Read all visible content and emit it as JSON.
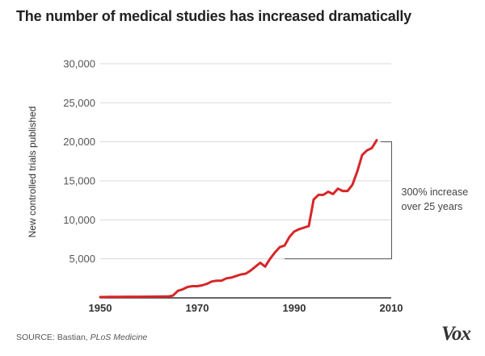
{
  "chart_data": {
    "type": "line",
    "title": "The number of medical studies has increased dramatically",
    "ylabel": "New controlled trials published",
    "xlabel": "",
    "xlim": [
      1950,
      2010
    ],
    "ylim": [
      0,
      30000
    ],
    "x_ticks": [
      "1950",
      "1970",
      "1990",
      "2010"
    ],
    "x_tick_values": [
      1950,
      1970,
      1990,
      2010
    ],
    "y_ticks": [
      "5,000",
      "10,000",
      "15,000",
      "20,000",
      "25,000",
      "30,000"
    ],
    "y_tick_values": [
      5000,
      10000,
      15000,
      20000,
      25000,
      30000
    ],
    "grid": "horizontal",
    "series": [
      {
        "color": "#d62728",
        "x": [
          1950,
          1952,
          1954,
          1956,
          1958,
          1960,
          1962,
          1964,
          1965,
          1966,
          1967,
          1968,
          1969,
          1970,
          1971,
          1972,
          1973,
          1974,
          1975,
          1976,
          1977,
          1978,
          1979,
          1980,
          1981,
          1982,
          1983,
          1984,
          1985,
          1986,
          1987,
          1988,
          1989,
          1990,
          1991,
          1992,
          1993,
          1994,
          1995,
          1996,
          1997,
          1998,
          1999,
          2000,
          2001,
          2002,
          2003,
          2004,
          2005,
          2006,
          2007
        ],
        "y": [
          100,
          120,
          130,
          140,
          150,
          160,
          170,
          180,
          300,
          900,
          1100,
          1400,
          1500,
          1500,
          1600,
          1800,
          2100,
          2200,
          2200,
          2500,
          2600,
          2800,
          3000,
          3100,
          3500,
          4000,
          4500,
          4000,
          5000,
          5800,
          6500,
          6700,
          7800,
          8500,
          8800,
          9000,
          9200,
          12600,
          13200,
          13200,
          13600,
          13300,
          14000,
          13700,
          13700,
          14500,
          16200,
          18300,
          18900,
          19200,
          20200
        ]
      }
    ],
    "annotations": [
      {
        "text_lines": [
          "300% increase",
          "over 25 years"
        ],
        "from": {
          "x": 1988,
          "y": 5000
        },
        "to": {
          "x": 2007,
          "y": 20000
        }
      }
    ]
  },
  "footer": {
    "source_prefix": "SOURCE: Bastian, ",
    "source_publication": "PLoS Medicine",
    "logo": "Vox"
  },
  "colors": {
    "line": "#d62728",
    "grid": "#d9d9d9",
    "axis": "#333333",
    "bracket": "#555555"
  }
}
